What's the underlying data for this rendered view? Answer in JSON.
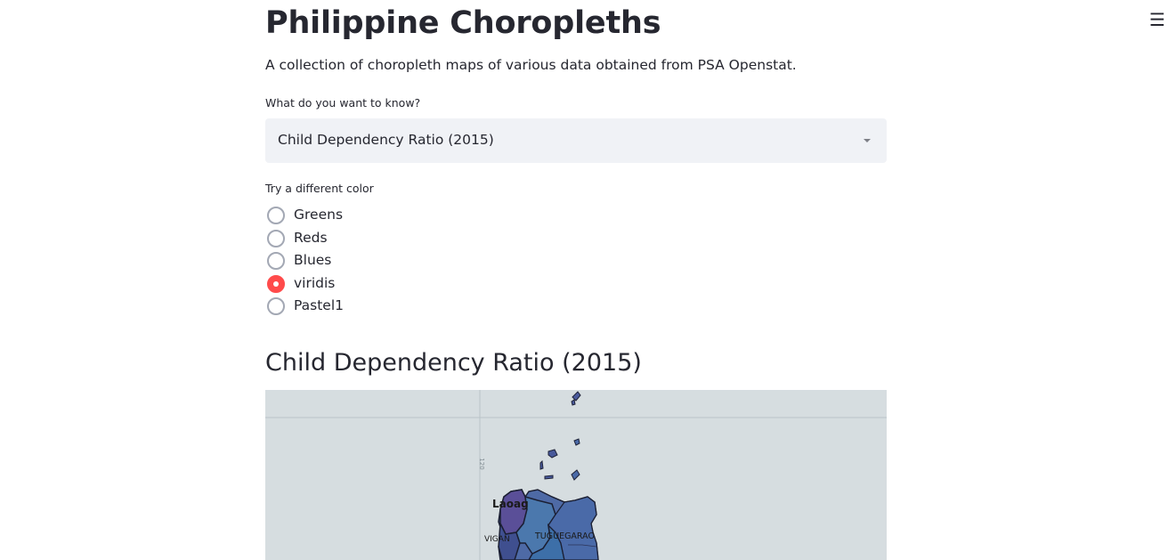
{
  "header": {
    "menu_icon": "hamburger-menu-icon",
    "menu_glyph": "☰"
  },
  "page": {
    "title": "Philippine Choropleths",
    "subtitle": "A collection of choropleth maps of various data obtained from PSA Openstat."
  },
  "select": {
    "label": "What do you want to know?",
    "value": "Child Dependency Ratio (2015)",
    "caret_icon": "caret-down-icon"
  },
  "color_radio": {
    "label": "Try a different color",
    "options": [
      "Greens",
      "Reds",
      "Blues",
      "viridis",
      "Pastel1"
    ],
    "selected": "viridis",
    "accent_color": "#ff4b4b"
  },
  "map": {
    "title": "Child Dependency Ratio (2015)",
    "background_color": "#d6dde0",
    "grid_label": "120",
    "city_labels": [
      "Laoag",
      "VIGAN",
      "TUGUEGARAO"
    ]
  }
}
